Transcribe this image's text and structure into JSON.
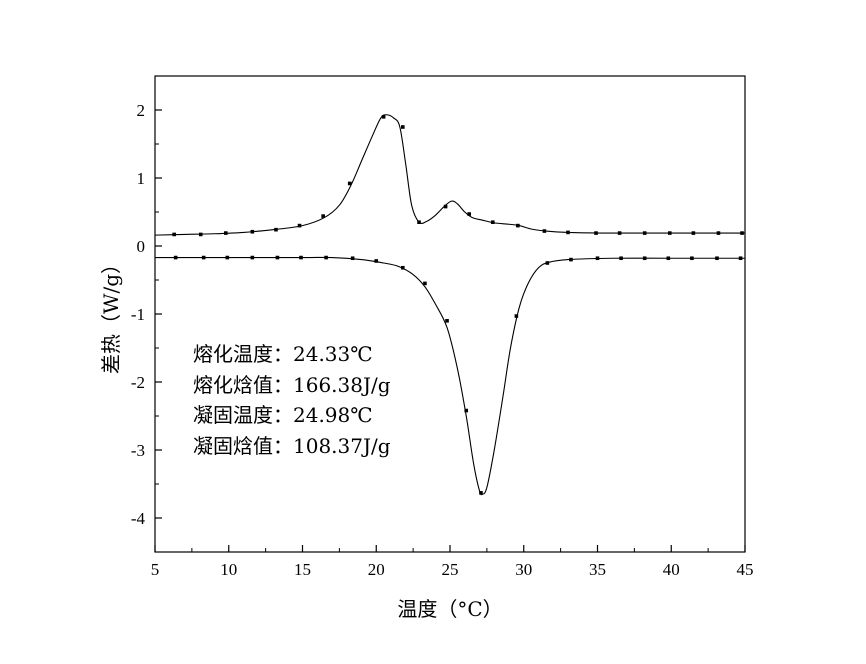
{
  "chart_data": {
    "type": "line",
    "title": "",
    "xlabel": "温度（°C）",
    "ylabel": "差热（W/g）",
    "xlim": [
      5,
      45
    ],
    "ylim": [
      -4.5,
      2.5
    ],
    "x_ticks": [
      5,
      10,
      15,
      20,
      25,
      30,
      35,
      40,
      45
    ],
    "y_ticks": [
      -4,
      -3,
      -2,
      -1,
      0,
      1,
      2
    ],
    "grid": false,
    "legend": "none",
    "annotations": [
      "熔化温度：24.33℃",
      "熔化焓值：166.38J/g",
      "凝固温度：24.98℃",
      "凝固焓值：108.37J/g"
    ],
    "series": [
      {
        "curve": [
          [
            5,
            0.16
          ],
          [
            7,
            0.17
          ],
          [
            9,
            0.18
          ],
          [
            11,
            0.2
          ],
          [
            13,
            0.24
          ],
          [
            15,
            0.3
          ],
          [
            16.5,
            0.42
          ],
          [
            17.5,
            0.6
          ],
          [
            18.3,
            0.9
          ],
          [
            19,
            1.25
          ],
          [
            19.7,
            1.6
          ],
          [
            20.3,
            1.88
          ],
          [
            20.7,
            1.93
          ],
          [
            21.2,
            1.88
          ],
          [
            21.6,
            1.75
          ],
          [
            22,
            1.2
          ],
          [
            22.4,
            0.6
          ],
          [
            22.9,
            0.35
          ],
          [
            23.4,
            0.36
          ],
          [
            24,
            0.45
          ],
          [
            24.6,
            0.58
          ],
          [
            25.1,
            0.66
          ],
          [
            25.5,
            0.62
          ],
          [
            26,
            0.5
          ],
          [
            26.5,
            0.42
          ],
          [
            27.2,
            0.38
          ],
          [
            28,
            0.34
          ],
          [
            29,
            0.32
          ],
          [
            29.7,
            0.3
          ],
          [
            30.5,
            0.25
          ],
          [
            31.5,
            0.22
          ],
          [
            33,
            0.2
          ],
          [
            36,
            0.19
          ],
          [
            40,
            0.19
          ],
          [
            45,
            0.19
          ]
        ],
        "markers": [
          [
            6.3,
            0.17
          ],
          [
            8.1,
            0.17
          ],
          [
            9.8,
            0.19
          ],
          [
            11.6,
            0.21
          ],
          [
            13.2,
            0.24
          ],
          [
            14.8,
            0.3
          ],
          [
            16.4,
            0.44
          ],
          [
            18.2,
            0.92
          ],
          [
            20.5,
            1.9
          ],
          [
            21.8,
            1.75
          ],
          [
            22.9,
            0.35
          ],
          [
            24.7,
            0.58
          ],
          [
            26.3,
            0.47
          ],
          [
            27.9,
            0.35
          ],
          [
            29.6,
            0.3
          ],
          [
            31.4,
            0.22
          ],
          [
            33,
            0.2
          ],
          [
            34.9,
            0.19
          ],
          [
            36.5,
            0.19
          ],
          [
            38.2,
            0.19
          ],
          [
            39.9,
            0.19
          ],
          [
            41.5,
            0.19
          ],
          [
            43.2,
            0.19
          ],
          [
            44.8,
            0.19
          ]
        ]
      },
      {
        "curve": [
          [
            5,
            -0.17
          ],
          [
            10,
            -0.17
          ],
          [
            15,
            -0.17
          ],
          [
            17,
            -0.17
          ],
          [
            19,
            -0.2
          ],
          [
            20.5,
            -0.25
          ],
          [
            21.5,
            -0.3
          ],
          [
            22.5,
            -0.42
          ],
          [
            23.3,
            -0.6
          ],
          [
            24,
            -0.85
          ],
          [
            24.8,
            -1.2
          ],
          [
            25.5,
            -1.8
          ],
          [
            26.1,
            -2.5
          ],
          [
            26.6,
            -3.2
          ],
          [
            27,
            -3.6
          ],
          [
            27.2,
            -3.65
          ],
          [
            27.5,
            -3.55
          ],
          [
            28,
            -3.0
          ],
          [
            28.6,
            -2.2
          ],
          [
            29.1,
            -1.5
          ],
          [
            29.7,
            -0.9
          ],
          [
            30.3,
            -0.55
          ],
          [
            31,
            -0.32
          ],
          [
            31.7,
            -0.24
          ],
          [
            33,
            -0.2
          ],
          [
            36,
            -0.18
          ],
          [
            40,
            -0.18
          ],
          [
            45,
            -0.18
          ]
        ],
        "markers": [
          [
            6.4,
            -0.17
          ],
          [
            8.3,
            -0.17
          ],
          [
            9.9,
            -0.17
          ],
          [
            11.6,
            -0.17
          ],
          [
            13.3,
            -0.17
          ],
          [
            14.9,
            -0.17
          ],
          [
            16.6,
            -0.17
          ],
          [
            18.4,
            -0.18
          ],
          [
            20,
            -0.22
          ],
          [
            21.8,
            -0.32
          ],
          [
            23.3,
            -0.55
          ],
          [
            24.8,
            -1.1
          ],
          [
            26.1,
            -2.42
          ],
          [
            27.1,
            -3.63
          ],
          [
            29.5,
            -1.03
          ],
          [
            31.6,
            -0.25
          ],
          [
            33.2,
            -0.2
          ],
          [
            35,
            -0.18
          ],
          [
            36.6,
            -0.18
          ],
          [
            38.2,
            -0.18
          ],
          [
            39.8,
            -0.18
          ],
          [
            41.4,
            -0.18
          ],
          [
            43.1,
            -0.18
          ],
          [
            44.7,
            -0.18
          ]
        ]
      }
    ]
  }
}
